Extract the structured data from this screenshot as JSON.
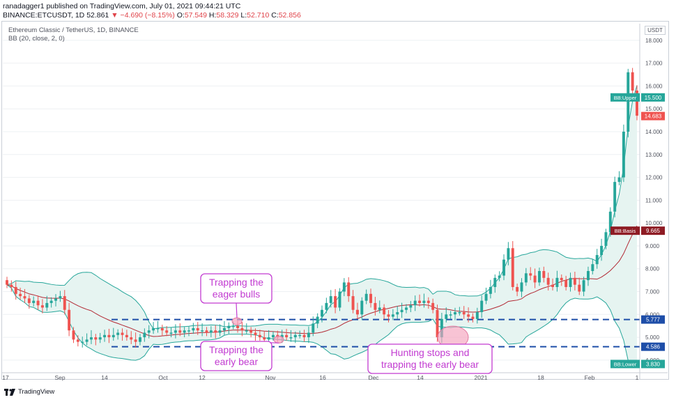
{
  "header": {
    "line1": "ranadagger1 published on TradingView.com, July 01, 2021 09:44:21 UTC",
    "line2_symbol": "BINANCE:ETCUSDT, 1D",
    "line2_price": "52.861",
    "line2_change": "▼ −4.690 (−8.15%)",
    "line2_o": "O:",
    "line2_o_val": "57.549",
    "line2_h": "H:",
    "line2_h_val": "58.329",
    "line2_l": "L:",
    "line2_l_val": "52.710",
    "line2_c": "C:",
    "line2_c_val": "52.856"
  },
  "legend": {
    "title": "Ethereum Classic / TetherUS, 1D, BINANCE",
    "indicator": "BB (20, close, 2, 0)"
  },
  "axis_unit": "USDT",
  "footer": {
    "brand": "TradingView"
  },
  "colors": {
    "up": "#26a69a",
    "down": "#ef5350",
    "band": "#26a69a",
    "basis": "#b22833",
    "fill": "#e6f4f1",
    "dashed": "#1e4ea8",
    "callout": "#c23bd1",
    "highlight": "#f5a3bd"
  },
  "chart_data": {
    "type": "candlestick",
    "title": "Ethereum Classic / TetherUS, 1D, BINANCE",
    "y_ticks": [
      "4.000",
      "5.000",
      "6.000",
      "7.000",
      "8.000",
      "9.000",
      "10.000",
      "11.000",
      "12.000",
      "13.000",
      "14.000",
      "15.000",
      "16.000",
      "17.000",
      "18.000"
    ],
    "x_ticks": [
      "17",
      "Sep",
      "14",
      "Oct",
      "12",
      "Nov",
      "16",
      "Dec",
      "14",
      "2021",
      "18",
      "Feb",
      "1"
    ],
    "ylim": [
      3.6,
      18.3
    ],
    "price_tags": [
      {
        "label": "BB:Upper",
        "value": "15.500",
        "tag_color": "#26a69a"
      },
      {
        "label": "",
        "value": "14.683",
        "tag_color": "#ef5350"
      },
      {
        "label": "BB:Basis",
        "value": "9.665",
        "tag_color": "#8e1b24"
      },
      {
        "label": "",
        "value": "5.777",
        "tag_color": "#1e4ea8"
      },
      {
        "label": "",
        "value": "4.586",
        "tag_color": "#1e4ea8"
      },
      {
        "label": "BB:Lower",
        "value": "3.830",
        "tag_color": "#26a69a"
      }
    ],
    "support_levels": [
      5.777,
      4.586
    ],
    "annotations": [
      {
        "text_line1": "Trapping the",
        "text_line2": "eager bulls"
      },
      {
        "text_line1": "Trapping the",
        "text_line2": "early bear"
      },
      {
        "text_line1": "Hunting stops and",
        "text_line2": "trapping the early bear"
      }
    ],
    "closes": [
      7.3,
      7.2,
      6.9,
      6.8,
      6.7,
      6.5,
      6.6,
      6.4,
      6.3,
      6.5,
      6.6,
      6.7,
      6.8,
      6.2,
      5.3,
      4.9,
      4.8,
      4.8,
      4.9,
      5.0,
      4.9,
      5.0,
      5.1,
      5.0,
      5.1,
      5.2,
      5.1,
      5.0,
      4.9,
      4.8,
      5.0,
      5.2,
      5.3,
      5.4,
      5.4,
      5.3,
      5.2,
      5.2,
      5.3,
      5.2,
      5.3,
      5.3,
      5.4,
      5.3,
      5.3,
      5.2,
      5.3,
      5.2,
      5.3,
      5.4,
      5.5,
      5.5,
      5.4,
      5.3,
      5.3,
      5.2,
      5.1,
      5.0,
      4.9,
      5.0,
      5.1,
      5.0,
      5.1,
      5.0,
      5.0,
      5.1,
      5.1,
      5.0,
      5.2,
      5.6,
      5.9,
      6.2,
      6.5,
      6.8,
      6.3,
      7.0,
      7.4,
      6.8,
      6.2,
      6.0,
      6.6,
      6.9,
      6.5,
      6.2,
      6.3,
      6.0,
      5.9,
      6.0,
      6.1,
      6.2,
      6.3,
      6.4,
      6.6,
      6.5,
      6.6,
      6.5,
      6.2,
      5.0,
      5.8,
      6.0,
      6.0,
      6.1,
      6.1,
      6.0,
      5.9,
      5.8,
      6.1,
      6.6,
      6.9,
      7.2,
      7.6,
      7.7,
      8.4,
      8.9,
      7.2,
      7.0,
      7.4,
      7.8,
      7.7,
      7.4,
      7.9,
      7.6,
      7.3,
      7.2,
      7.6,
      7.5,
      7.2,
      7.6,
      7.3,
      7.0,
      7.5,
      7.9,
      8.2,
      8.6,
      9.0,
      9.6,
      10.5,
      11.8,
      12.0,
      14.0,
      16.6,
      15.8,
      14.7
    ],
    "opens": [
      7.5,
      7.3,
      7.2,
      6.9,
      6.8,
      6.7,
      6.5,
      6.6,
      6.4,
      6.3,
      6.5,
      6.6,
      6.7,
      6.8,
      6.2,
      5.3,
      4.9,
      4.8,
      4.8,
      4.9,
      5.0,
      4.9,
      5.0,
      5.1,
      5.0,
      5.1,
      5.2,
      5.1,
      5.0,
      4.9,
      4.8,
      5.0,
      5.2,
      5.3,
      5.4,
      5.4,
      5.3,
      5.2,
      5.2,
      5.3,
      5.2,
      5.3,
      5.3,
      5.4,
      5.3,
      5.3,
      5.2,
      5.3,
      5.2,
      5.3,
      5.4,
      5.5,
      5.5,
      5.4,
      5.3,
      5.3,
      5.2,
      5.1,
      5.0,
      4.9,
      5.0,
      5.1,
      5.0,
      5.1,
      5.0,
      5.0,
      5.1,
      5.1,
      5.0,
      5.2,
      5.6,
      5.9,
      6.2,
      6.5,
      6.8,
      6.3,
      7.0,
      7.4,
      6.8,
      6.2,
      6.0,
      6.6,
      6.9,
      6.5,
      6.2,
      6.3,
      6.0,
      5.9,
      6.0,
      6.1,
      6.2,
      6.3,
      6.4,
      6.6,
      6.5,
      6.6,
      6.5,
      6.2,
      5.0,
      5.8,
      6.0,
      6.0,
      6.1,
      6.1,
      6.0,
      5.9,
      5.8,
      6.1,
      6.6,
      6.9,
      7.2,
      7.6,
      7.7,
      8.4,
      8.9,
      7.2,
      7.0,
      7.4,
      7.8,
      7.7,
      7.4,
      7.9,
      7.6,
      7.3,
      7.2,
      7.6,
      7.5,
      7.2,
      7.6,
      7.3,
      7.0,
      7.5,
      7.9,
      8.2,
      8.6,
      9.0,
      9.6,
      10.5,
      11.8,
      12.0,
      14.0,
      16.6,
      15.8
    ]
  }
}
